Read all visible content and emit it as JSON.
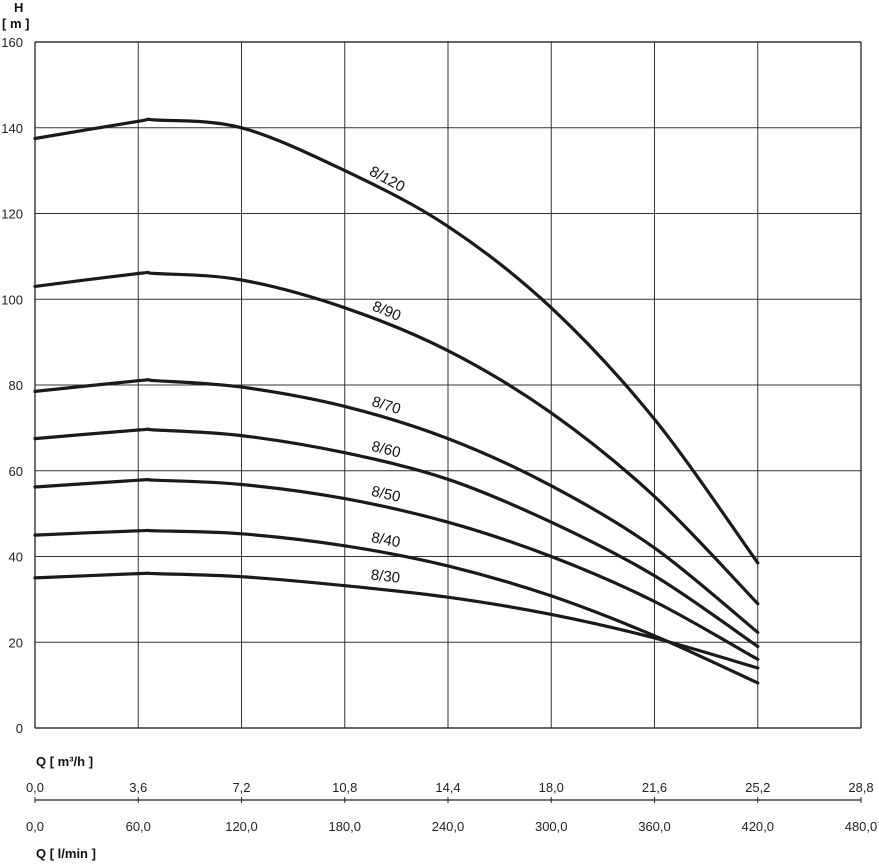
{
  "chart_data": {
    "type": "line",
    "y_axis": {
      "title": "H",
      "unit": "[ m ]",
      "range": [
        0,
        160
      ],
      "ticks": [
        "0",
        "20",
        "40",
        "60",
        "80",
        "100",
        "120",
        "140",
        "160"
      ]
    },
    "x_axis_primary": {
      "title": "Q [ m³/h ]",
      "range": [
        0,
        28.8
      ],
      "ticks": [
        "0,0",
        "3,6",
        "7,2",
        "10,8",
        "14,4",
        "18,0",
        "21,6",
        "25,2",
        "28,8"
      ]
    },
    "x_axis_secondary": {
      "title": "Q [ l/min ]",
      "range": [
        0,
        480
      ],
      "ticks": [
        "0,0",
        "60,0",
        "120,0",
        "180,0",
        "240,0",
        "300,0",
        "360,0",
        "420,0",
        "480,0"
      ]
    },
    "grid": true,
    "series": [
      {
        "name": "8/120",
        "x": [
          0,
          3.6,
          4.2,
          7.2,
          10.8,
          14.4,
          18,
          21.6,
          25.2
        ],
        "y": [
          137.5,
          141.5,
          141.8,
          140,
          130,
          117,
          98,
          72,
          38.5
        ]
      },
      {
        "name": "8/90",
        "x": [
          0,
          3.6,
          4.2,
          7.2,
          10.8,
          14.4,
          18,
          21.6,
          25.2
        ],
        "y": [
          103,
          106,
          106,
          104.5,
          98,
          88,
          73.5,
          54,
          29
        ]
      },
      {
        "name": "8/70",
        "x": [
          0,
          3.6,
          4.2,
          7.2,
          10.8,
          14.4,
          18,
          21.6,
          25.2
        ],
        "y": [
          78.5,
          81,
          81,
          79.5,
          75,
          67.5,
          56.5,
          42,
          22.3
        ]
      },
      {
        "name": "8/60",
        "x": [
          0,
          3.6,
          4.2,
          7.2,
          10.8,
          14.4,
          18,
          21.6,
          25.2
        ],
        "y": [
          67.5,
          69.5,
          69.5,
          68.2,
          64.2,
          58,
          48,
          35.5,
          19
        ]
      },
      {
        "name": "8/50",
        "x": [
          0,
          3.6,
          4.2,
          7.2,
          10.8,
          14.4,
          18,
          21.6,
          25.2
        ],
        "y": [
          56.2,
          57.8,
          57.8,
          56.8,
          53.5,
          48,
          40,
          29.5,
          16
        ]
      },
      {
        "name": "8/40",
        "x": [
          0,
          3.6,
          4.2,
          7.2,
          10.8,
          14.4,
          18,
          21.6,
          25.2
        ],
        "y": [
          45,
          46,
          46,
          45.3,
          42.5,
          37.8,
          30.8,
          21.5,
          10.5
        ]
      },
      {
        "name": "8/30",
        "x": [
          0,
          3.6,
          4.2,
          7.2,
          10.8,
          14.4,
          18,
          21.6,
          25.2
        ],
        "y": [
          35,
          36,
          36,
          35.3,
          33.2,
          30.5,
          26.5,
          21,
          14
        ]
      }
    ]
  }
}
